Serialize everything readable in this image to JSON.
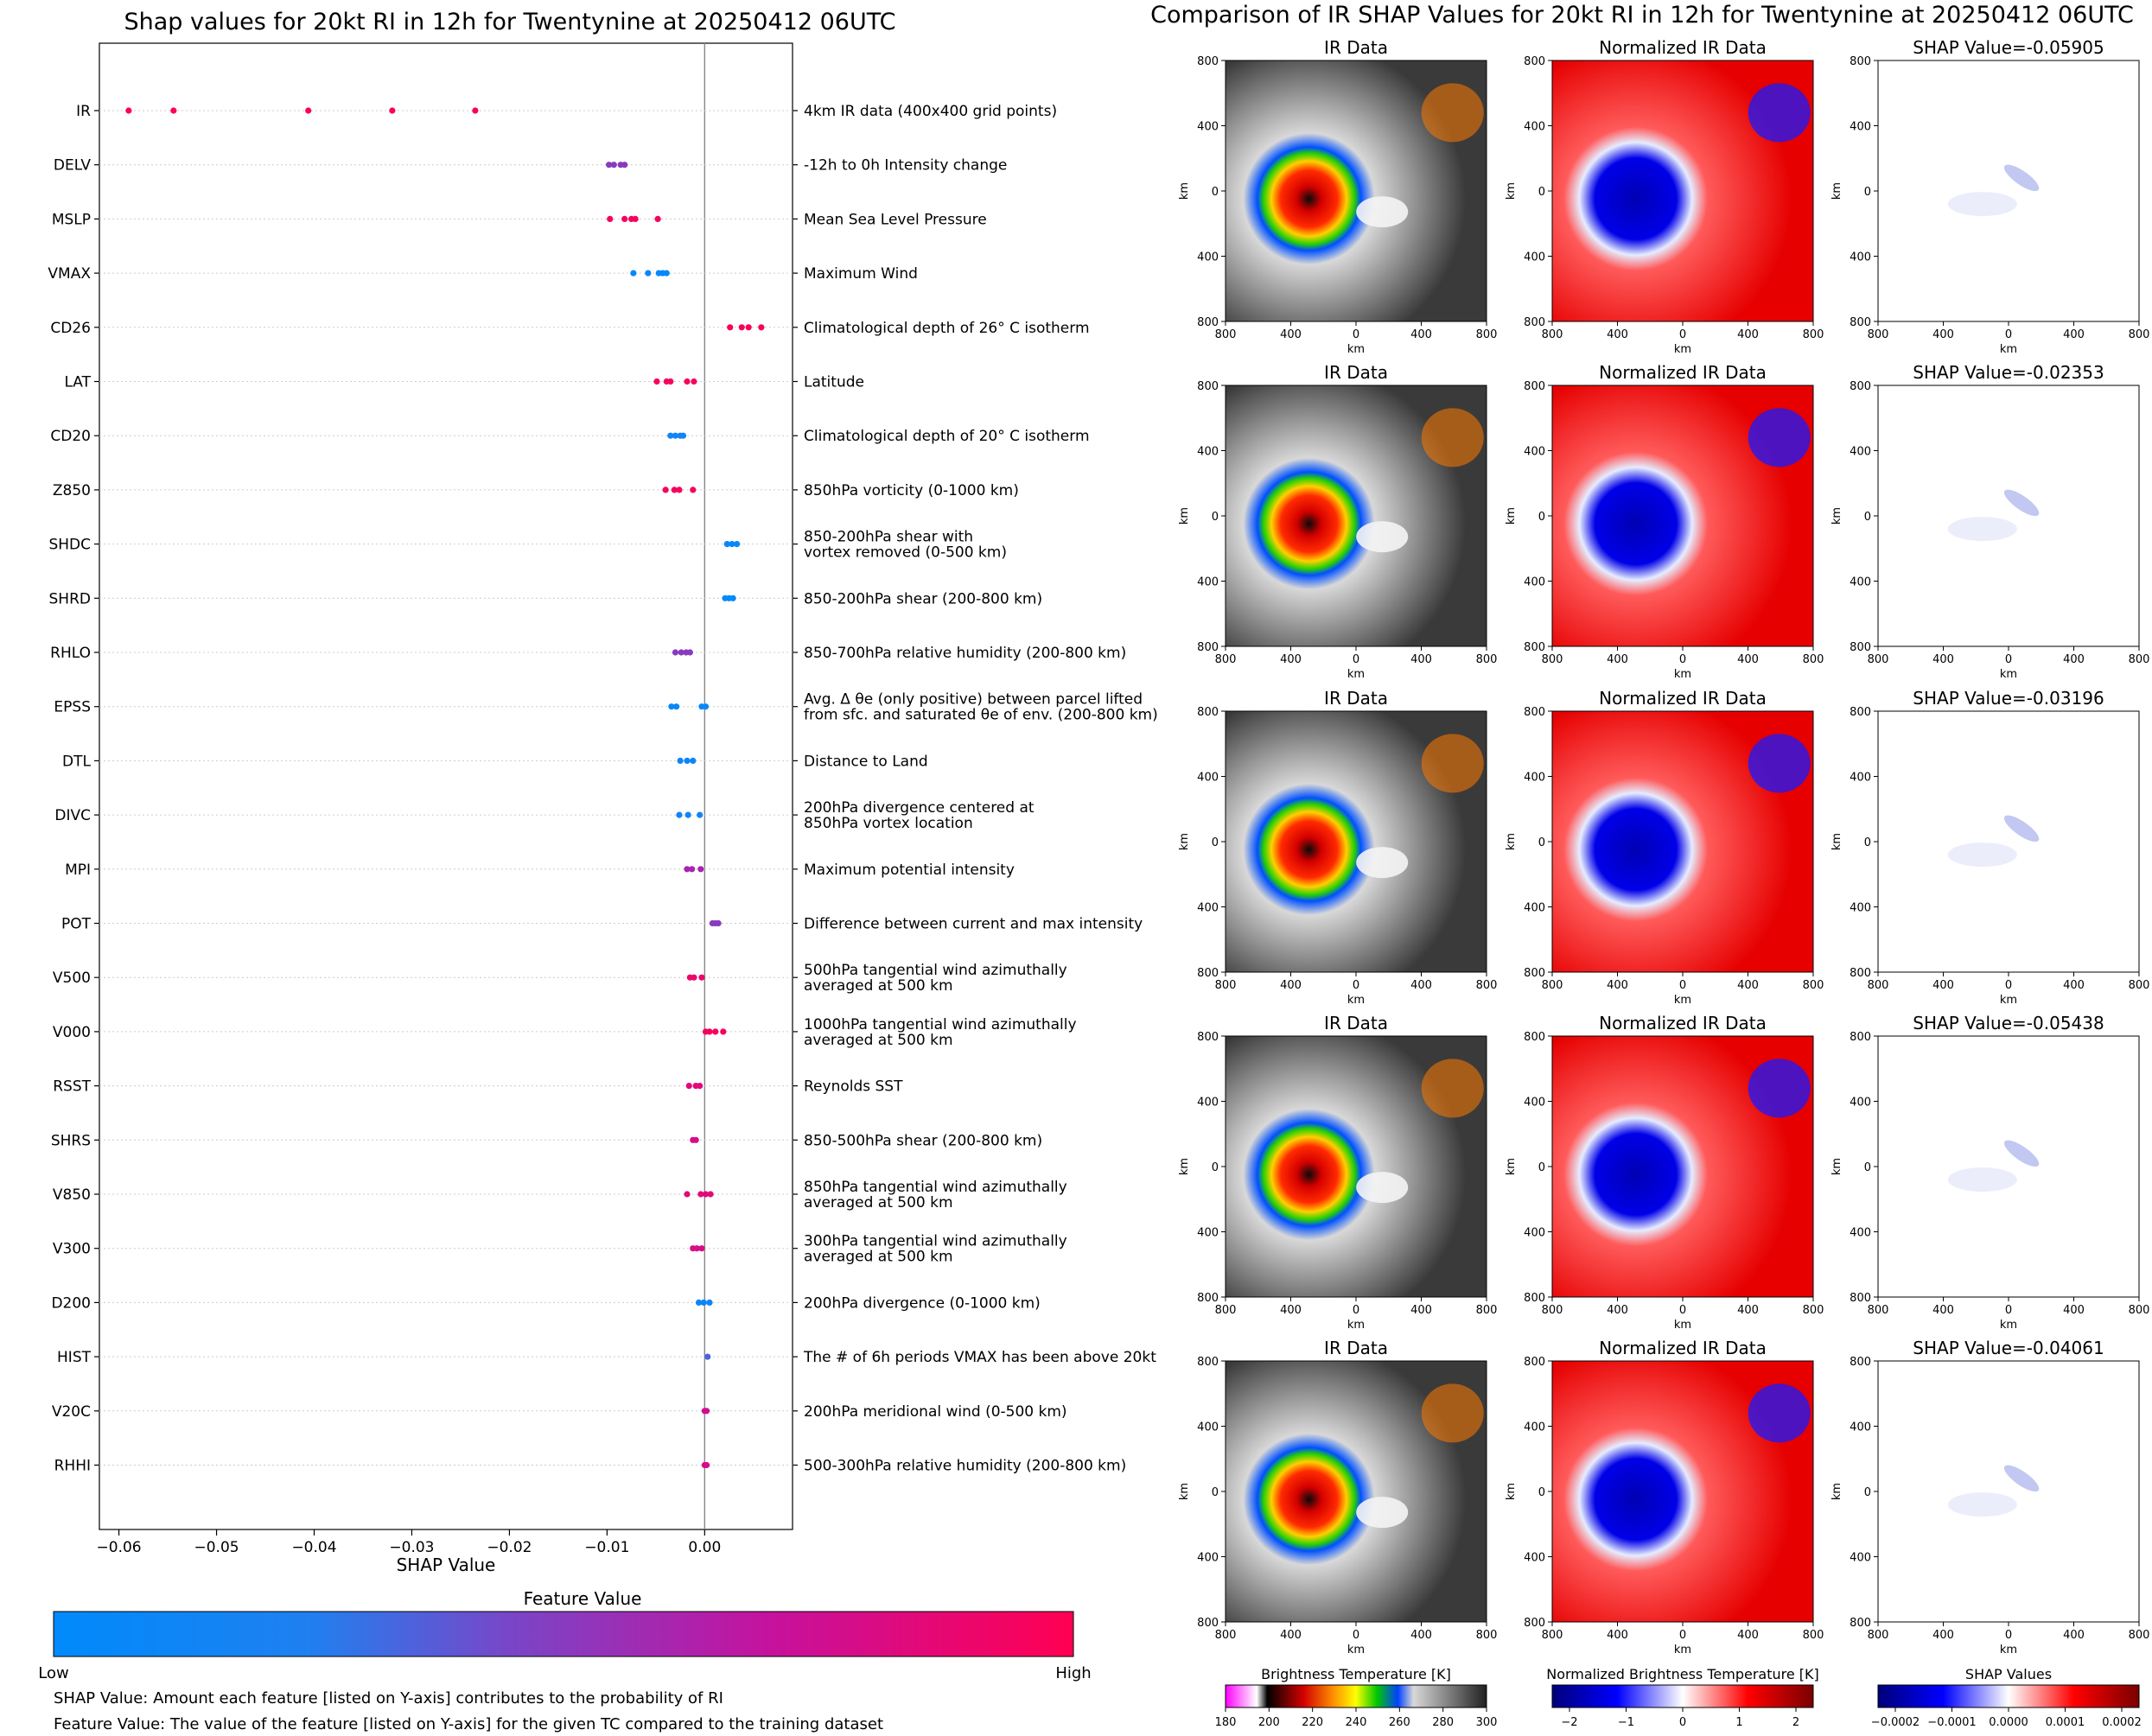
{
  "left": {
    "title": "Shap values for 20kt RI in 12h for Twentynine at 20250412 06UTC",
    "xlabel": "SHAP Value",
    "colorbar_title": "Feature Value",
    "colorbar_low": "Low",
    "colorbar_high": "High",
    "colors": {
      "low": "#008afb",
      "high": "#ff0052"
    },
    "footnotes": [
      "SHAP Value: Amount each feature [listed on Y-axis] contributes to the probability of RI",
      "Feature Value: The value of the feature [listed on Y-axis] for the given TC compared to the training dataset"
    ]
  },
  "chart_data": [
    {
      "type": "scatter",
      "title": "Shap values for 20kt RI in 12h for Twentynine at 20250412 06UTC",
      "xlabel": "SHAP Value",
      "xlim": [
        -0.062,
        0.009
      ],
      "xticks": [
        "−0.06",
        "−0.05",
        "−0.04",
        "−0.03",
        "−0.02",
        "−0.01",
        "0.00"
      ],
      "xtick_values": [
        -0.06,
        -0.05,
        -0.04,
        -0.03,
        -0.02,
        -0.01,
        0.0
      ],
      "features": [
        {
          "name": "IR",
          "desc": [
            "4km IR data (400x400 grid points)"
          ],
          "fv": 1.0,
          "values": [
            -0.059,
            -0.0544,
            -0.0406,
            -0.032,
            -0.0235
          ]
        },
        {
          "name": "DELV",
          "desc": [
            "-12h to 0h Intensity change"
          ],
          "fv": 0.5,
          "values": [
            -0.0098,
            -0.0093,
            -0.0086,
            -0.0082
          ]
        },
        {
          "name": "MSLP",
          "desc": [
            "Mean Sea Level Pressure"
          ],
          "fv": 0.95,
          "values": [
            -0.0097,
            -0.0082,
            -0.0075,
            -0.0071,
            -0.0048
          ]
        },
        {
          "name": "VMAX",
          "desc": [
            "Maximum Wind"
          ],
          "fv": 0.05,
          "values": [
            -0.0073,
            -0.0058,
            -0.0047,
            -0.0043,
            -0.0039
          ]
        },
        {
          "name": "CD26",
          "desc": [
            "Climatological depth of 26° C isotherm"
          ],
          "fv": 0.97,
          "values": [
            0.0026,
            0.0038,
            0.0045,
            0.0058
          ]
        },
        {
          "name": "LAT",
          "desc": [
            "Latitude"
          ],
          "fv": 0.95,
          "values": [
            -0.0049,
            -0.0039,
            -0.0035,
            -0.0018,
            -0.0011
          ]
        },
        {
          "name": "CD20",
          "desc": [
            "Climatological depth of 20° C isotherm"
          ],
          "fv": 0.15,
          "values": [
            -0.0035,
            -0.003,
            -0.0025,
            -0.0022
          ]
        },
        {
          "name": "Z850",
          "desc": [
            "850hPa vorticity (0-1000 km)"
          ],
          "fv": 0.95,
          "values": [
            -0.004,
            -0.0031,
            -0.0026,
            -0.0012
          ]
        },
        {
          "name": "SHDC",
          "desc": [
            "850-200hPa shear with",
            "vortex removed (0-500 km)"
          ],
          "fv": 0.05,
          "values": [
            0.0023,
            0.0028,
            0.0033
          ]
        },
        {
          "name": "SHRD",
          "desc": [
            "850-200hPa shear (200-800 km)"
          ],
          "fv": 0.05,
          "values": [
            0.0021,
            0.0025,
            0.0029
          ]
        },
        {
          "name": "RHLO",
          "desc": [
            "850-700hPa relative humidity (200-800 km)"
          ],
          "fv": 0.5,
          "values": [
            -0.003,
            -0.0024,
            -0.0019,
            -0.0015
          ]
        },
        {
          "name": "EPSS",
          "desc": [
            "Avg. Δ θe (only positive) between parcel lifted",
            "from sfc. and saturated θe of env. (200-800 km)"
          ],
          "fv": 0.05,
          "values": [
            -0.0034,
            -0.0029,
            -0.0003,
            0.0001
          ]
        },
        {
          "name": "DTL",
          "desc": [
            "Distance to Land"
          ],
          "fv": 0.1,
          "values": [
            -0.0025,
            -0.0018,
            -0.0012
          ]
        },
        {
          "name": "DIVC",
          "desc": [
            "200hPa divergence centered at",
            "850hPa vortex location"
          ],
          "fv": 0.15,
          "values": [
            -0.0026,
            -0.0017,
            -0.0005
          ]
        },
        {
          "name": "MPI",
          "desc": [
            "Maximum potential intensity"
          ],
          "fv": 0.6,
          "values": [
            -0.0018,
            -0.0013,
            -0.0004
          ]
        },
        {
          "name": "POT",
          "desc": [
            "Difference between current and max intensity"
          ],
          "fv": 0.5,
          "values": [
            0.0008,
            0.0011,
            0.0014
          ]
        },
        {
          "name": "V500",
          "desc": [
            "500hPa tangential wind azimuthally",
            "averaged at 500 km"
          ],
          "fv": 0.9,
          "values": [
            -0.0015,
            -0.0011,
            -0.0003
          ]
        },
        {
          "name": "V000",
          "desc": [
            "1000hPa tangential wind azimuthally",
            "averaged at 500 km"
          ],
          "fv": 0.95,
          "values": [
            0.0001,
            0.0005,
            0.0011,
            0.0019
          ]
        },
        {
          "name": "RSST",
          "desc": [
            "Reynolds SST"
          ],
          "fv": 0.85,
          "values": [
            -0.0016,
            -0.0009,
            -0.0005
          ]
        },
        {
          "name": "SHRS",
          "desc": [
            "850-500hPa shear (200-800 km)"
          ],
          "fv": 0.8,
          "values": [
            -0.0012,
            -0.0009
          ]
        },
        {
          "name": "V850",
          "desc": [
            "850hPa tangential wind azimuthally",
            "averaged at 500 km"
          ],
          "fv": 0.85,
          "values": [
            -0.0018,
            -0.0004,
            0.0001,
            0.0006
          ]
        },
        {
          "name": "V300",
          "desc": [
            "300hPa tangential wind azimuthally",
            "averaged at 500 km"
          ],
          "fv": 0.8,
          "values": [
            -0.0012,
            -0.0008,
            -0.0003
          ]
        },
        {
          "name": "D200",
          "desc": [
            "200hPa divergence (0-1000 km)"
          ],
          "fv": 0.1,
          "values": [
            -0.0006,
            -0.0001,
            0.0005
          ]
        },
        {
          "name": "HIST",
          "desc": [
            "The # of 6h periods VMAX has been above 20kt"
          ],
          "fv": 0.35,
          "values": [
            0.0003
          ]
        },
        {
          "name": "V20C",
          "desc": [
            "200hPa meridional wind (0-500 km)"
          ],
          "fv": 0.75,
          "values": [
            0.0,
            0.0002
          ]
        },
        {
          "name": "RHHI",
          "desc": [
            "500-300hPa relative humidity (200-800 km)"
          ],
          "fv": 0.8,
          "values": [
            0.0,
            0.0002
          ]
        }
      ]
    }
  ],
  "right": {
    "title": "Comparison of IR SHAP Values for 20kt RI in 12h for Twentynine at 20250412 06UTC",
    "col_titles": [
      "IR Data",
      "Normalized IR Data"
    ],
    "shap_titles": [
      "SHAP Value=-0.05905",
      "SHAP Value=-0.02353",
      "SHAP Value=-0.03196",
      "SHAP Value=-0.05438",
      "SHAP Value=-0.04061"
    ],
    "axis_label": "km",
    "axis_ticks": [
      "800",
      "400",
      "0",
      "400",
      "800"
    ],
    "colorbars": [
      {
        "title": "Brightness Temperature [K]",
        "ticks": [
          "180",
          "200",
          "220",
          "240",
          "260",
          "280",
          "300"
        ]
      },
      {
        "title": "Normalized Brightness Temperature [K]",
        "ticks": [
          "−2",
          "−1",
          "0",
          "1",
          "2"
        ]
      },
      {
        "title": "SHAP Values",
        "ticks": [
          "−0.0002",
          "−0.0001",
          "0.0000",
          "0.0001",
          "0.0002"
        ]
      }
    ]
  }
}
